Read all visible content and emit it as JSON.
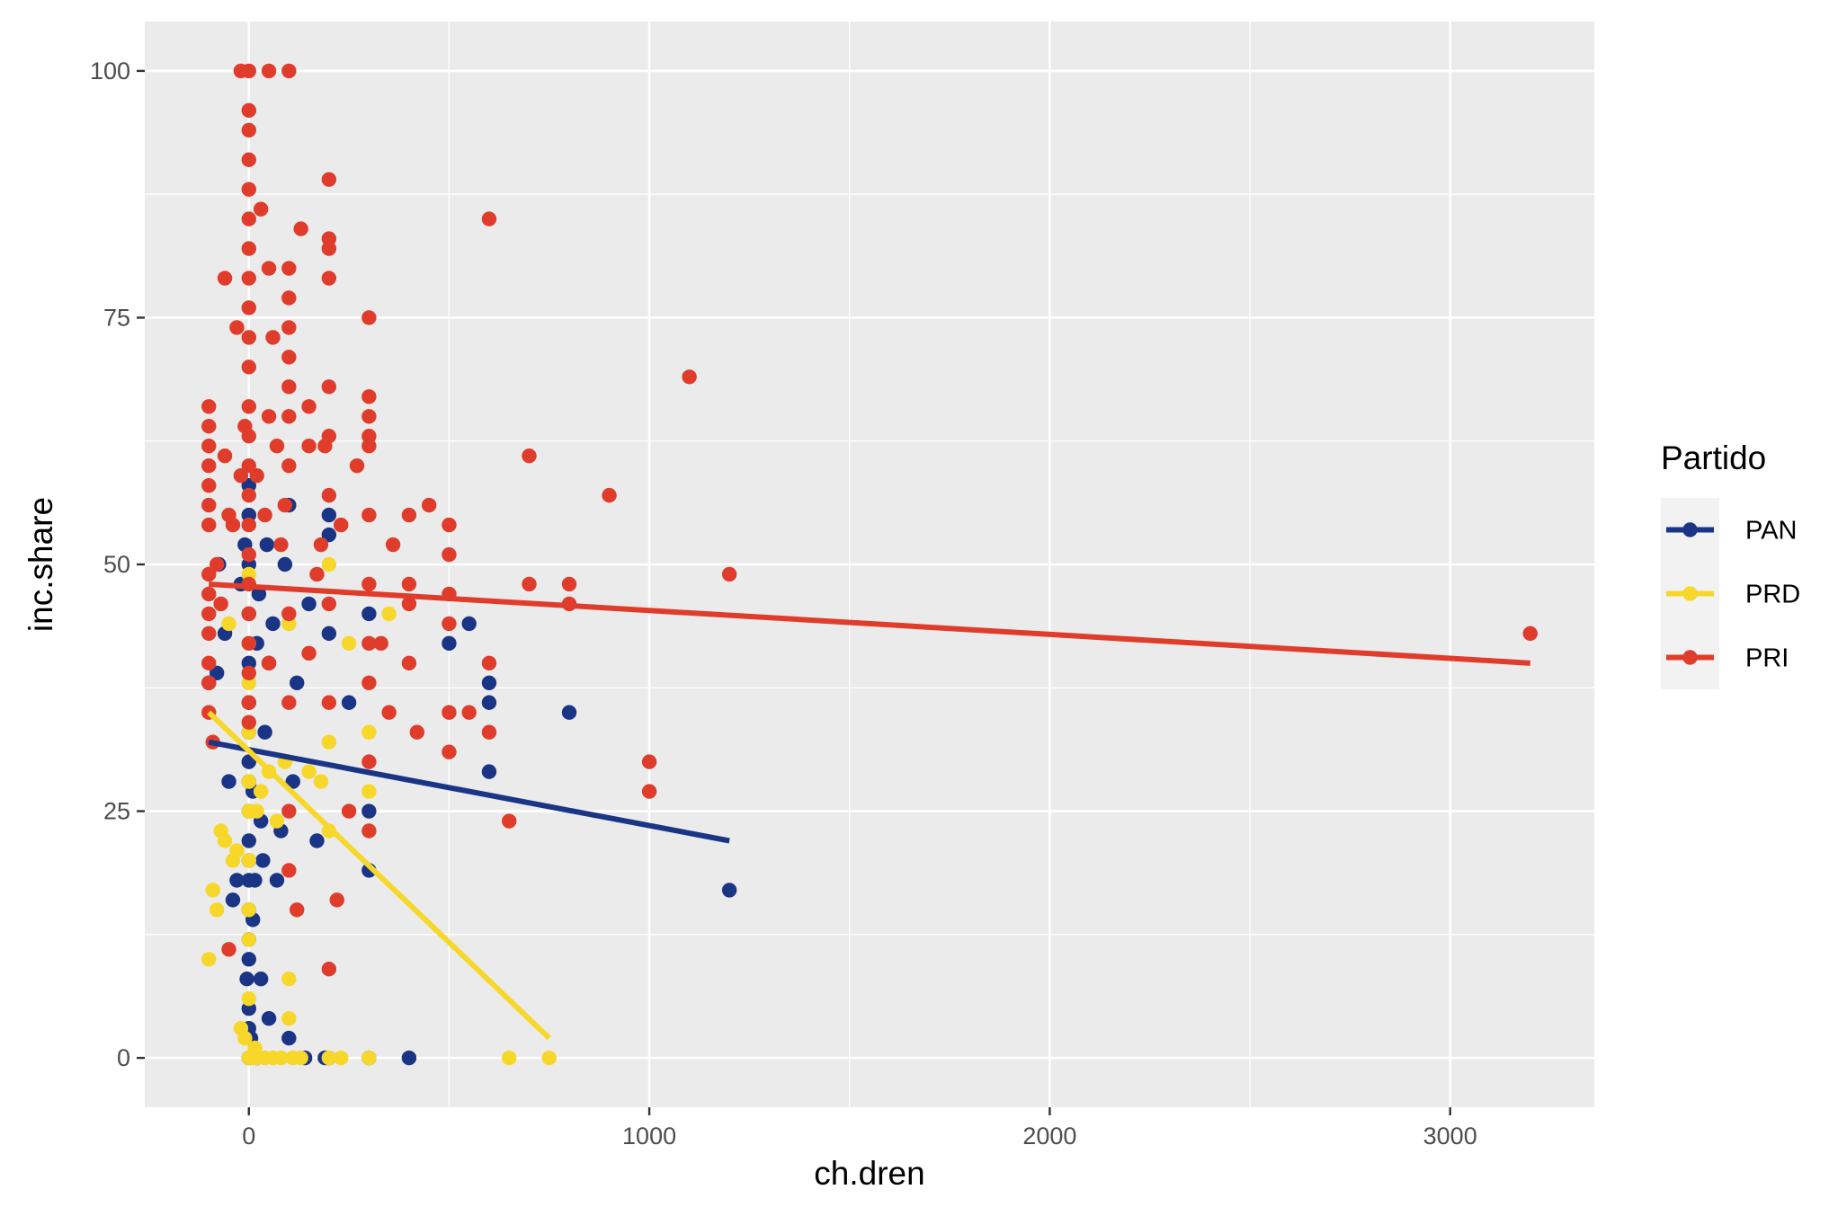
{
  "chart_data": {
    "type": "scatter",
    "xlabel": "ch.dren",
    "ylabel": "inc.share",
    "xlim": [
      -260,
      3360
    ],
    "ylim": [
      -5,
      105
    ],
    "x_ticks": [
      0,
      1000,
      2000,
      3000
    ],
    "y_ticks": [
      0,
      25,
      50,
      75,
      100
    ],
    "x_tick_labels": [
      "0",
      "1000",
      "2000",
      "3000"
    ],
    "y_tick_labels": [
      "0",
      "25",
      "50",
      "75",
      "100"
    ],
    "grid": true,
    "legend": {
      "title": "Partido",
      "position": "right"
    },
    "series": [
      {
        "name": "PAN",
        "color": "#1a3486",
        "points": [
          [
            -100,
            38
          ],
          [
            -80,
            39
          ],
          [
            -75,
            50
          ],
          [
            -60,
            43
          ],
          [
            -50,
            28
          ],
          [
            -40,
            16
          ],
          [
            -30,
            18
          ],
          [
            -20,
            48
          ],
          [
            -10,
            52
          ],
          [
            -5,
            8
          ],
          [
            0,
            0
          ],
          [
            0,
            3
          ],
          [
            0,
            5
          ],
          [
            0,
            10
          ],
          [
            0,
            12
          ],
          [
            0,
            15
          ],
          [
            0,
            18
          ],
          [
            0,
            20
          ],
          [
            0,
            22
          ],
          [
            0,
            25
          ],
          [
            0,
            28
          ],
          [
            0,
            30
          ],
          [
            0,
            33
          ],
          [
            0,
            36
          ],
          [
            0,
            40
          ],
          [
            0,
            45
          ],
          [
            0,
            50
          ],
          [
            0,
            55
          ],
          [
            0,
            58
          ],
          [
            5,
            2
          ],
          [
            10,
            14
          ],
          [
            10,
            27
          ],
          [
            15,
            18
          ],
          [
            20,
            0
          ],
          [
            20,
            42
          ],
          [
            25,
            47
          ],
          [
            30,
            24
          ],
          [
            30,
            8
          ],
          [
            35,
            20
          ],
          [
            40,
            33
          ],
          [
            45,
            52
          ],
          [
            50,
            4
          ],
          [
            50,
            40
          ],
          [
            60,
            44
          ],
          [
            70,
            18
          ],
          [
            80,
            23
          ],
          [
            90,
            50
          ],
          [
            100,
            2
          ],
          [
            100,
            56
          ],
          [
            110,
            28
          ],
          [
            120,
            38
          ],
          [
            140,
            0
          ],
          [
            150,
            46
          ],
          [
            170,
            22
          ],
          [
            190,
            0
          ],
          [
            200,
            53
          ],
          [
            200,
            55
          ],
          [
            200,
            43
          ],
          [
            200,
            0
          ],
          [
            250,
            36
          ],
          [
            300,
            0
          ],
          [
            300,
            25
          ],
          [
            300,
            19
          ],
          [
            300,
            45
          ],
          [
            400,
            0
          ],
          [
            500,
            42
          ],
          [
            550,
            44
          ],
          [
            600,
            38
          ],
          [
            600,
            36
          ],
          [
            600,
            29
          ],
          [
            800,
            35
          ],
          [
            1200,
            17
          ]
        ],
        "fit": [
          [
            -100,
            32
          ],
          [
            1200,
            22
          ]
        ]
      },
      {
        "name": "PRD",
        "color": "#f7d72a",
        "points": [
          [
            -100,
            10
          ],
          [
            -90,
            17
          ],
          [
            -80,
            15
          ],
          [
            -70,
            23
          ],
          [
            -60,
            22
          ],
          [
            -50,
            44
          ],
          [
            -40,
            20
          ],
          [
            -30,
            21
          ],
          [
            -20,
            3
          ],
          [
            -10,
            2
          ],
          [
            0,
            0
          ],
          [
            0,
            6
          ],
          [
            0,
            12
          ],
          [
            0,
            15
          ],
          [
            0,
            20
          ],
          [
            0,
            25
          ],
          [
            0,
            28
          ],
          [
            0,
            33
          ],
          [
            0,
            38
          ],
          [
            0,
            42
          ],
          [
            0,
            49
          ],
          [
            10,
            0
          ],
          [
            15,
            1
          ],
          [
            20,
            0
          ],
          [
            20,
            25
          ],
          [
            30,
            27
          ],
          [
            40,
            0
          ],
          [
            50,
            29
          ],
          [
            60,
            0
          ],
          [
            70,
            24
          ],
          [
            80,
            0
          ],
          [
            90,
            30
          ],
          [
            100,
            8
          ],
          [
            100,
            4
          ],
          [
            100,
            44
          ],
          [
            110,
            0
          ],
          [
            130,
            0
          ],
          [
            150,
            29
          ],
          [
            180,
            28
          ],
          [
            200,
            0
          ],
          [
            200,
            23
          ],
          [
            200,
            32
          ],
          [
            200,
            50
          ],
          [
            230,
            0
          ],
          [
            250,
            42
          ],
          [
            300,
            0
          ],
          [
            300,
            33
          ],
          [
            300,
            27
          ],
          [
            350,
            45
          ],
          [
            650,
            0
          ],
          [
            750,
            0
          ]
        ],
        "fit": [
          [
            -100,
            35
          ],
          [
            750,
            2
          ]
        ]
      },
      {
        "name": "PRI",
        "color": "#e03c2b",
        "points": [
          [
            -100,
            66
          ],
          [
            -100,
            64
          ],
          [
            -100,
            62
          ],
          [
            -100,
            60
          ],
          [
            -100,
            58
          ],
          [
            -100,
            56
          ],
          [
            -100,
            54
          ],
          [
            -100,
            49
          ],
          [
            -100,
            47
          ],
          [
            -100,
            45
          ],
          [
            -100,
            43
          ],
          [
            -100,
            40
          ],
          [
            -100,
            38
          ],
          [
            -100,
            35
          ],
          [
            -90,
            32
          ],
          [
            -80,
            50
          ],
          [
            -70,
            46
          ],
          [
            -60,
            79
          ],
          [
            -60,
            61
          ],
          [
            -50,
            11
          ],
          [
            -50,
            55
          ],
          [
            -40,
            54
          ],
          [
            -30,
            74
          ],
          [
            -20,
            100
          ],
          [
            -20,
            59
          ],
          [
            -10,
            64
          ],
          [
            0,
            100
          ],
          [
            0,
            96
          ],
          [
            0,
            94
          ],
          [
            0,
            91
          ],
          [
            0,
            88
          ],
          [
            0,
            85
          ],
          [
            0,
            82
          ],
          [
            0,
            79
          ],
          [
            0,
            76
          ],
          [
            0,
            73
          ],
          [
            0,
            70
          ],
          [
            0,
            66
          ],
          [
            0,
            63
          ],
          [
            0,
            60
          ],
          [
            0,
            57
          ],
          [
            0,
            54
          ],
          [
            0,
            51
          ],
          [
            0,
            48
          ],
          [
            0,
            45
          ],
          [
            0,
            42
          ],
          [
            0,
            39
          ],
          [
            0,
            36
          ],
          [
            0,
            34
          ],
          [
            20,
            59
          ],
          [
            30,
            86
          ],
          [
            40,
            55
          ],
          [
            50,
            100
          ],
          [
            50,
            80
          ],
          [
            50,
            65
          ],
          [
            50,
            40
          ],
          [
            60,
            73
          ],
          [
            70,
            62
          ],
          [
            80,
            52
          ],
          [
            90,
            56
          ],
          [
            100,
            100
          ],
          [
            100,
            80
          ],
          [
            100,
            77
          ],
          [
            100,
            74
          ],
          [
            100,
            71
          ],
          [
            100,
            68
          ],
          [
            100,
            65
          ],
          [
            100,
            60
          ],
          [
            100,
            45
          ],
          [
            100,
            36
          ],
          [
            100,
            25
          ],
          [
            100,
            19
          ],
          [
            120,
            15
          ],
          [
            130,
            84
          ],
          [
            150,
            66
          ],
          [
            150,
            62
          ],
          [
            150,
            41
          ],
          [
            170,
            49
          ],
          [
            180,
            52
          ],
          [
            190,
            62
          ],
          [
            200,
            89
          ],
          [
            200,
            83
          ],
          [
            200,
            82
          ],
          [
            200,
            79
          ],
          [
            200,
            68
          ],
          [
            200,
            63
          ],
          [
            200,
            57
          ],
          [
            200,
            46
          ],
          [
            200,
            36
          ],
          [
            200,
            9
          ],
          [
            220,
            16
          ],
          [
            230,
            54
          ],
          [
            250,
            25
          ],
          [
            270,
            60
          ],
          [
            300,
            75
          ],
          [
            300,
            67
          ],
          [
            300,
            65
          ],
          [
            300,
            63
          ],
          [
            300,
            62
          ],
          [
            300,
            55
          ],
          [
            300,
            48
          ],
          [
            300,
            42
          ],
          [
            300,
            38
          ],
          [
            300,
            30
          ],
          [
            300,
            23
          ],
          [
            330,
            42
          ],
          [
            360,
            52
          ],
          [
            350,
            35
          ],
          [
            400,
            55
          ],
          [
            400,
            48
          ],
          [
            400,
            46
          ],
          [
            400,
            40
          ],
          [
            420,
            33
          ],
          [
            450,
            56
          ],
          [
            500,
            54
          ],
          [
            500,
            51
          ],
          [
            500,
            47
          ],
          [
            500,
            44
          ],
          [
            500,
            35
          ],
          [
            500,
            31
          ],
          [
            550,
            35
          ],
          [
            600,
            85
          ],
          [
            600,
            40
          ],
          [
            600,
            33
          ],
          [
            650,
            24
          ],
          [
            700,
            61
          ],
          [
            700,
            48
          ],
          [
            800,
            48
          ],
          [
            800,
            46
          ],
          [
            900,
            57
          ],
          [
            1000,
            30
          ],
          [
            1000,
            27
          ],
          [
            1100,
            69
          ],
          [
            1200,
            49
          ],
          [
            3200,
            43
          ]
        ],
        "fit": [
          [
            -100,
            48
          ],
          [
            3200,
            40
          ]
        ]
      }
    ]
  }
}
